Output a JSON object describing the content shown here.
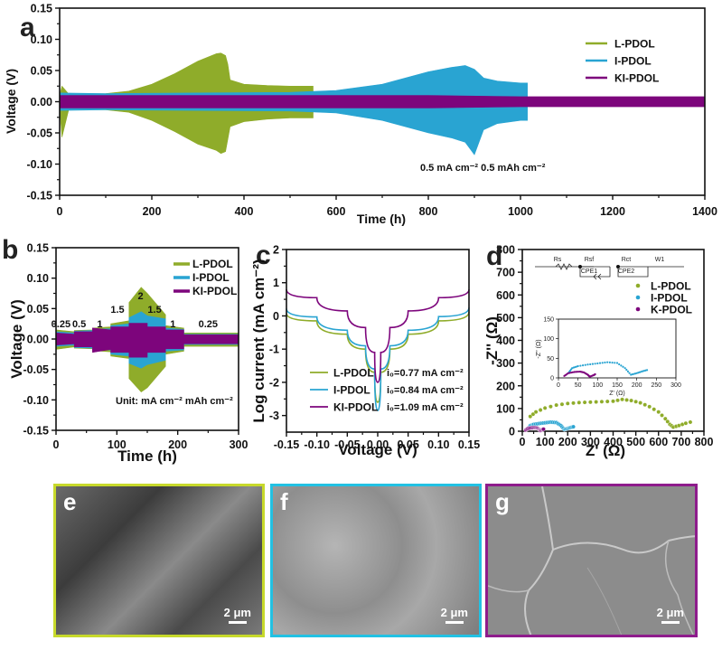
{
  "colors": {
    "L": "#8fac2a",
    "I": "#29a4d2",
    "KI": "#7d057c",
    "frame_e": "#c7d92b",
    "frame_f": "#22c1e3",
    "frame_g": "#8e1c8c"
  },
  "chart_data": [
    {
      "panel": "a",
      "type": "area",
      "title": "",
      "xlabel": "Time (h)",
      "ylabel": "Voltage (V)",
      "xlim": [
        0,
        1400
      ],
      "ylim": [
        -0.15,
        0.15
      ],
      "xticks": [
        "0",
        "200",
        "400",
        "600",
        "800",
        "1000",
        "1200",
        "1400"
      ],
      "yticks": [
        "0.15",
        "0.10",
        "0.05",
        "0.00",
        "-0.05",
        "-0.10",
        "-0.15"
      ],
      "annotation": "0.5 mA cm⁻²   0.5 mAh cm⁻²",
      "legend": {
        "position": "top-right",
        "entries": [
          "L-PDOL",
          "I-PDOL",
          "KI-PDOL"
        ]
      },
      "series": [
        {
          "name": "L-PDOL",
          "note": "voltage envelope (±)",
          "x": [
            0,
            5,
            20,
            100,
            150,
            200,
            250,
            300,
            340,
            350,
            360,
            365,
            370,
            400,
            450,
            500,
            550
          ],
          "upper": [
            0.01,
            0.025,
            0.012,
            0.013,
            0.017,
            0.028,
            0.045,
            0.065,
            0.077,
            0.078,
            0.074,
            0.06,
            0.035,
            0.028,
            0.026,
            0.025,
            0.025
          ],
          "lower": [
            -0.01,
            -0.057,
            -0.012,
            -0.013,
            -0.017,
            -0.03,
            -0.048,
            -0.068,
            -0.078,
            -0.083,
            -0.08,
            -0.06,
            -0.04,
            -0.032,
            -0.028,
            -0.026,
            -0.026
          ]
        },
        {
          "name": "I-PDOL",
          "note": "voltage envelope (±)",
          "x": [
            0,
            100,
            300,
            500,
            600,
            700,
            750,
            800,
            850,
            880,
            900,
            920,
            950,
            1000,
            1015
          ],
          "upper": [
            0.014,
            0.013,
            0.014,
            0.015,
            0.018,
            0.028,
            0.038,
            0.048,
            0.055,
            0.058,
            0.052,
            0.038,
            0.033,
            0.03,
            0.03
          ],
          "lower": [
            -0.014,
            -0.013,
            -0.014,
            -0.015,
            -0.018,
            -0.03,
            -0.04,
            -0.05,
            -0.058,
            -0.065,
            -0.085,
            -0.045,
            -0.035,
            -0.03,
            -0.03
          ]
        },
        {
          "name": "KI-PDOL",
          "note": "voltage envelope (±)",
          "x": [
            0,
            200,
            400,
            600,
            800,
            1000,
            1200,
            1400
          ],
          "upper": [
            0.01,
            0.01,
            0.01,
            0.01,
            0.01,
            0.008,
            0.008,
            0.008
          ],
          "lower": [
            -0.01,
            -0.01,
            -0.01,
            -0.01,
            -0.01,
            -0.008,
            -0.008,
            -0.008
          ]
        }
      ]
    },
    {
      "panel": "b",
      "type": "area",
      "title": "",
      "xlabel": "Time (h)",
      "ylabel": "Voltage (V)",
      "xlim": [
        0,
        300
      ],
      "ylim": [
        -0.15,
        0.15
      ],
      "xticks": [
        "0",
        "100",
        "200",
        "300"
      ],
      "yticks": [
        "0.15",
        "0.10",
        "0.05",
        "0.00",
        "-0.05",
        "-0.10",
        "-0.15"
      ],
      "annotation": "Unit: mA cm⁻²  mAh cm⁻²",
      "rate_labels": [
        {
          "x": 8,
          "text": "0.25"
        },
        {
          "x": 38,
          "text": "0.5"
        },
        {
          "x": 72,
          "text": "1"
        },
        {
          "x": 101,
          "text": "1.5"
        },
        {
          "x": 139,
          "text": "2"
        },
        {
          "x": 162,
          "text": "1.5"
        },
        {
          "x": 192,
          "text": "1"
        },
        {
          "x": 250,
          "text": "0.25"
        }
      ],
      "legend": {
        "position": "top-right",
        "entries": [
          "L-PDOL",
          "I-PDOL",
          "KI-PDOL"
        ]
      },
      "series": [
        {
          "name": "L-PDOL",
          "x": [
            0,
            30,
            30,
            60,
            60,
            90,
            90,
            120,
            120,
            140,
            150,
            180,
            180,
            210,
            210,
            300
          ],
          "upper": [
            0.015,
            0.012,
            0.014,
            0.015,
            0.018,
            0.02,
            0.025,
            0.03,
            0.06,
            0.085,
            0.075,
            0.04,
            0.022,
            0.018,
            0.01,
            0.01
          ],
          "lower": [
            -0.017,
            -0.013,
            -0.015,
            -0.016,
            -0.019,
            -0.021,
            -0.028,
            -0.032,
            -0.065,
            -0.087,
            -0.08,
            -0.045,
            -0.025,
            -0.02,
            -0.012,
            -0.012
          ]
        },
        {
          "name": "I-PDOL",
          "x": [
            0,
            30,
            30,
            60,
            60,
            90,
            90,
            120,
            120,
            140,
            150,
            180,
            180,
            210,
            210,
            300
          ],
          "upper": [
            0.012,
            0.01,
            0.013,
            0.014,
            0.016,
            0.017,
            0.022,
            0.025,
            0.035,
            0.045,
            0.038,
            0.033,
            0.018,
            0.016,
            0.008,
            0.008
          ],
          "lower": [
            -0.012,
            -0.01,
            -0.014,
            -0.015,
            -0.017,
            -0.018,
            -0.025,
            -0.028,
            -0.04,
            -0.048,
            -0.042,
            -0.035,
            -0.02,
            -0.018,
            -0.009,
            -0.009
          ]
        },
        {
          "name": "KI-PDOL",
          "x": [
            0,
            30,
            30,
            60,
            60,
            90,
            90,
            120,
            120,
            150,
            150,
            180,
            180,
            210,
            210,
            300
          ],
          "upper": [
            0.01,
            0.008,
            0.012,
            0.012,
            0.018,
            0.015,
            0.02,
            0.02,
            0.026,
            0.026,
            0.02,
            0.02,
            0.015,
            0.015,
            0.007,
            0.007
          ],
          "lower": [
            -0.01,
            -0.008,
            -0.013,
            -0.013,
            -0.022,
            -0.017,
            -0.022,
            -0.022,
            -0.03,
            -0.03,
            -0.022,
            -0.022,
            -0.016,
            -0.016,
            -0.008,
            -0.008
          ]
        }
      ]
    },
    {
      "panel": "c",
      "type": "line",
      "title": "",
      "xlabel": "Voltage (V)",
      "ylabel": "Log current (mA cm⁻²)",
      "xlim": [
        -0.15,
        0.15
      ],
      "ylim": [
        -3.5,
        2
      ],
      "xticks": [
        "-0.15",
        "-0.10",
        "-0.05",
        "0.00",
        "0.05",
        "0.10",
        "0.15"
      ],
      "yticks": [
        "2",
        "1",
        "0",
        "-1",
        "-2",
        "-3"
      ],
      "legend": {
        "position": "bottom-center",
        "entries": [
          "L-PDOL",
          "I-PDOL",
          "KI-PDOL"
        ]
      },
      "annotations": [
        "i₀=0.77 mA cm⁻²",
        "i₀=0.84 mA cm⁻²",
        "i₀=1.09 mA cm⁻²"
      ],
      "series": [
        {
          "name": "L-PDOL",
          "i0": 0.77,
          "x": [
            -0.15,
            -0.1,
            -0.05,
            -0.02,
            -0.005,
            0.0,
            0.005,
            0.02,
            0.05,
            0.1,
            0.15
          ],
          "y": [
            0.08,
            -0.15,
            -0.55,
            -1.0,
            -1.7,
            -2.6,
            -1.7,
            -1.0,
            -0.55,
            -0.15,
            0.12
          ]
        },
        {
          "name": "I-PDOL",
          "i0": 0.84,
          "x": [
            -0.15,
            -0.1,
            -0.05,
            -0.02,
            -0.005,
            0.0,
            0.005,
            0.02,
            0.05,
            0.1,
            0.15
          ],
          "y": [
            0.22,
            -0.03,
            -0.43,
            -0.9,
            -1.6,
            -2.85,
            -1.6,
            -0.9,
            -0.43,
            -0.02,
            0.25
          ]
        },
        {
          "name": "KI-PDOL",
          "i0": 1.09,
          "x": [
            -0.15,
            -0.1,
            -0.05,
            -0.02,
            -0.005,
            0.0,
            0.005,
            0.02,
            0.05,
            0.1,
            0.15
          ],
          "y": [
            0.8,
            0.55,
            0.15,
            -0.35,
            -1.1,
            -2.0,
            -1.1,
            -0.35,
            0.15,
            0.55,
            0.8
          ]
        }
      ]
    },
    {
      "panel": "d",
      "type": "scatter",
      "title": "",
      "xlabel": "Z' (Ω)",
      "ylabel": "-Z'' (Ω)",
      "xlim": [
        0,
        800
      ],
      "ylim": [
        0,
        800
      ],
      "xticks": [
        "0",
        "100",
        "200",
        "300",
        "400",
        "500",
        "600",
        "700",
        "800"
      ],
      "yticks": [
        "800",
        "700",
        "600",
        "500",
        "400",
        "300",
        "200",
        "100",
        "0"
      ],
      "circuit_labels": [
        "Rs",
        "Rsf",
        "CPE1",
        "Rct",
        "CPE2",
        "W1"
      ],
      "legend": {
        "position": "top-right",
        "entries": [
          "L-PDOL",
          "I-PDOL",
          "K-PDOL"
        ]
      },
      "series": [
        {
          "name": "L-PDOL",
          "x": [
            35,
            60,
            100,
            150,
            200,
            250,
            300,
            350,
            400,
            440,
            480,
            520,
            560,
            600,
            630,
            650,
            665,
            690,
            720,
            760
          ],
          "y": [
            65,
            85,
            102,
            115,
            122,
            126,
            128,
            130,
            132,
            140,
            135,
            125,
            108,
            85,
            55,
            30,
            18,
            25,
            35,
            45
          ]
        },
        {
          "name": "I-PDOL",
          "x": [
            25,
            35,
            50,
            75,
            100,
            125,
            150,
            170,
            185,
            200,
            215,
            230
          ],
          "y": [
            12,
            25,
            30,
            34,
            37,
            40,
            38,
            25,
            8,
            12,
            17,
            21
          ]
        },
        {
          "name": "K-PDOL",
          "x": [
            15,
            25,
            40,
            55,
            65,
            75,
            80,
            90,
            95
          ],
          "y": [
            5,
            12,
            15,
            16,
            14,
            8,
            3,
            7,
            10
          ]
        }
      ],
      "inset": {
        "xlabel": "Z' (Ω)",
        "ylabel": "-Z'' (Ω)",
        "xlim": [
          0,
          300
        ],
        "ylim": [
          0,
          150
        ],
        "xticks": [
          "0",
          "50",
          "100",
          "150",
          "200",
          "250",
          "300"
        ],
        "yticks": [
          "150",
          "100",
          "50",
          "0"
        ]
      }
    }
  ],
  "images": [
    {
      "label": "e",
      "scale": "2 μm",
      "frame": "frame_e"
    },
    {
      "label": "f",
      "scale": "2 μm",
      "frame": "frame_f"
    },
    {
      "label": "g",
      "scale": "2 μm",
      "frame": "frame_g"
    }
  ]
}
